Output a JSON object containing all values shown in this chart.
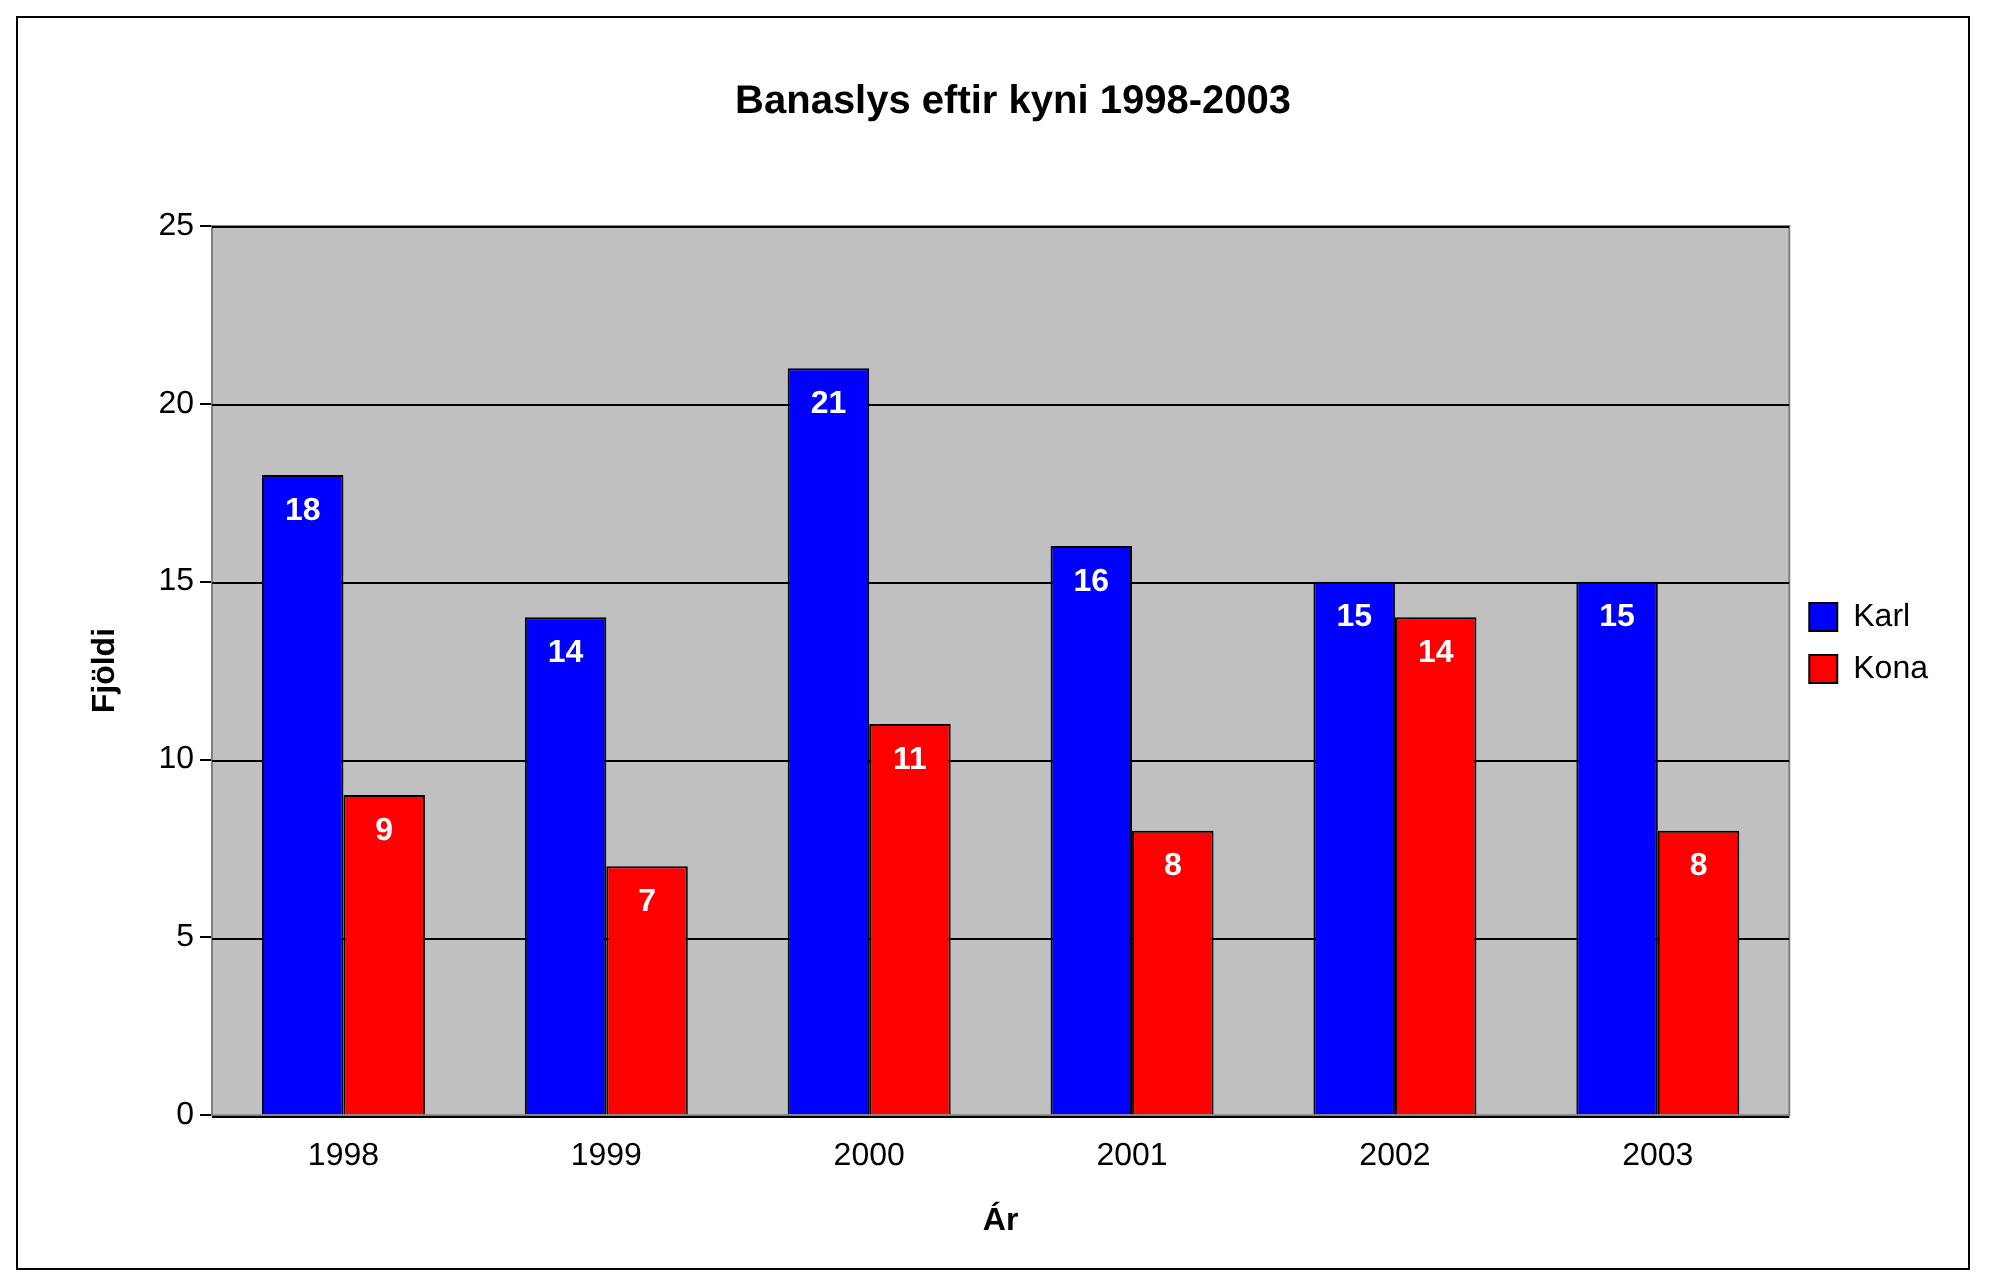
{
  "chart_data": {
    "type": "bar",
    "title": "Banaslys eftir kyni 1998-2003",
    "xlabel": "Ár",
    "ylabel": "Fjöldi",
    "categories": [
      "1998",
      "1999",
      "2000",
      "2001",
      "2002",
      "2003"
    ],
    "series": [
      {
        "name": "Karl",
        "color": "#0000ff",
        "values": [
          18,
          14,
          21,
          16,
          15,
          15
        ]
      },
      {
        "name": "Kona",
        "color": "#ff0000",
        "values": [
          9,
          7,
          11,
          8,
          14,
          8
        ]
      }
    ],
    "ylim": [
      0,
      25
    ],
    "yticks": [
      0,
      5,
      10,
      15,
      20,
      25
    ],
    "grid": "y",
    "legend": "right",
    "data_labels": true
  }
}
